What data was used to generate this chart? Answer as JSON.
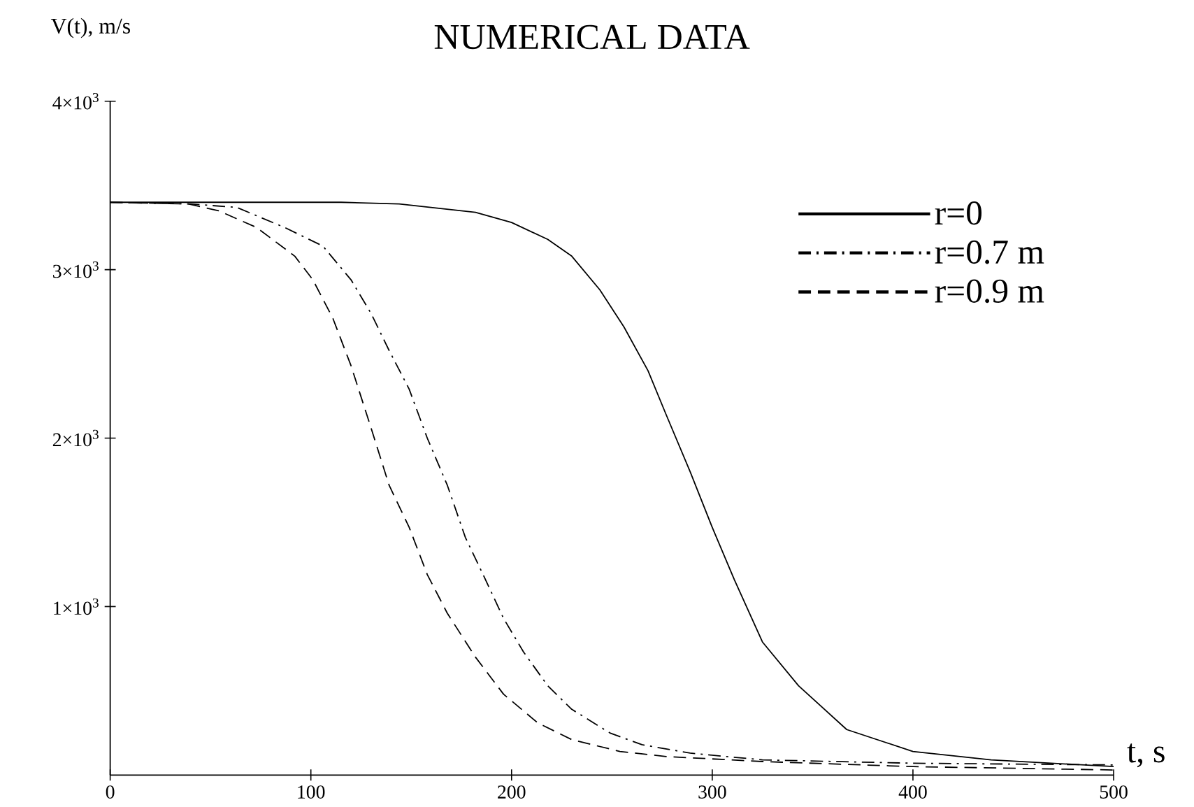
{
  "chart_data": {
    "type": "line",
    "title": "NUMERICAL DATA",
    "xlabel": "t, s",
    "ylabel": "V(t), m/s",
    "xlim": [
      0,
      500
    ],
    "ylim": [
      0,
      4000
    ],
    "xticks": [
      0,
      100,
      200,
      300,
      400,
      500
    ],
    "yticks": [
      {
        "value": 1000,
        "label": "1×10$^{3}$"
      },
      {
        "value": 2000,
        "label": "2×10$^{3}$"
      },
      {
        "value": 3000,
        "label": "3×10$^{3}$"
      },
      {
        "value": 4000,
        "label": "4×10$^{3}$"
      }
    ],
    "legend": "top right",
    "grid": false,
    "series": [
      {
        "name": "r=0",
        "color": "#000000",
        "line_style": "solid",
        "x": [
          0,
          115,
          144,
          182,
          200,
          218,
          230,
          244,
          256,
          268,
          277,
          289,
          300,
          311,
          325,
          343,
          367,
          400,
          439,
          500
        ],
        "values": [
          3400,
          3400,
          3390,
          3340,
          3280,
          3180,
          3080,
          2880,
          2660,
          2400,
          2140,
          1800,
          1470,
          1160,
          790,
          530,
          270,
          140,
          90,
          50
        ]
      },
      {
        "name": "r=0.7 m",
        "color": "#000000",
        "line_style": "dashdot",
        "x": [
          0,
          40,
          63,
          87,
          106,
          120,
          130,
          139,
          149,
          158,
          168,
          177,
          187,
          196,
          206,
          218,
          230,
          249,
          265,
          289,
          325,
          400,
          500
        ],
        "values": [
          3400,
          3390,
          3370,
          3250,
          3140,
          2940,
          2740,
          2520,
          2290,
          2000,
          1720,
          1410,
          1160,
          930,
          730,
          530,
          390,
          250,
          180,
          130,
          90,
          70,
          60
        ]
      },
      {
        "name": "r=0.9 m",
        "color": "#000000",
        "line_style": "dashed",
        "x": [
          0,
          39,
          54,
          73,
          92,
          101,
          111,
          120,
          130,
          139,
          149,
          158,
          168,
          182,
          196,
          213,
          230,
          254,
          277,
          325,
          400,
          500
        ],
        "values": [
          3400,
          3390,
          3350,
          3250,
          3080,
          2940,
          2710,
          2430,
          2060,
          1720,
          1470,
          1190,
          960,
          700,
          480,
          310,
          210,
          140,
          110,
          80,
          50,
          30
        ]
      }
    ]
  }
}
